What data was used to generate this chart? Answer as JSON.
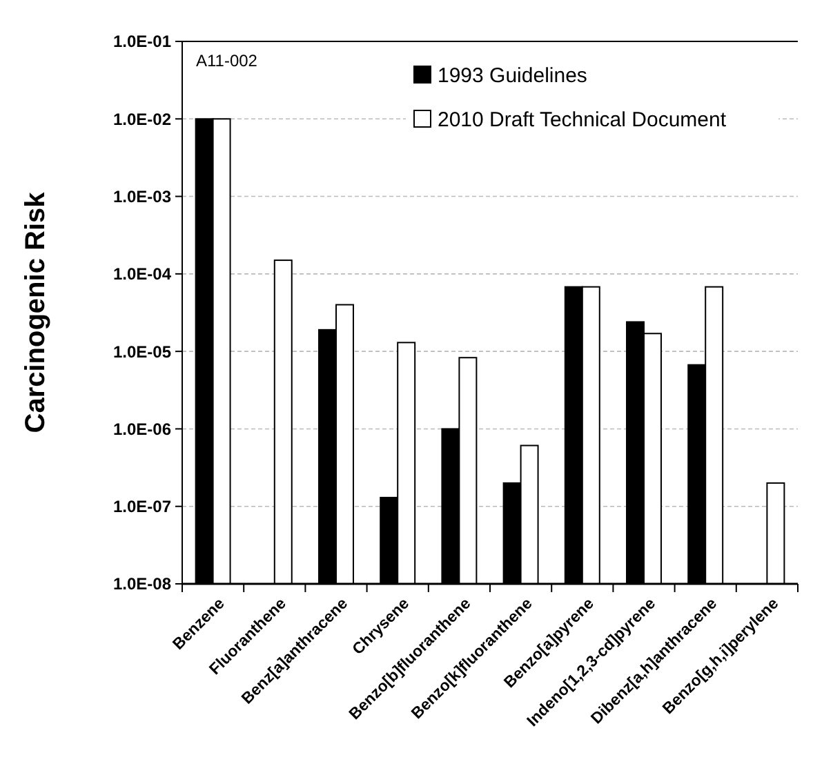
{
  "chart_data": {
    "type": "bar",
    "ylabel": "Carcinogenic Risk",
    "annotations": [
      "A11-002"
    ],
    "categories": [
      "Benzene",
      "Fluoranthene",
      "Benz[a]anthracene",
      "Chrysene",
      "Benzo[b]fluoranthene",
      "Benzo[k]fluoranthene",
      "Benzo[a]pyrene",
      "Indeno[1,2,3-cd]pyrene",
      "Dibenz[a,h]anthracene",
      "Benzo[g,h,i]perylene"
    ],
    "series": [
      {
        "name": "1993 Guidelines",
        "color": "#000000",
        "values": [
          0.01,
          null,
          1.9e-05,
          1.3e-07,
          1e-06,
          2e-07,
          6.8e-05,
          2.4e-05,
          6.7e-06,
          null
        ]
      },
      {
        "name": "2010 Draft Technical Document",
        "color": "#ffffff",
        "values": [
          0.01,
          0.00015,
          4e-05,
          1.3e-05,
          8.3e-06,
          6.1e-07,
          6.8e-05,
          1.7e-05,
          6.8e-05,
          2e-07
        ]
      }
    ],
    "log": true,
    "ylim": [
      1e-08,
      0.1
    ],
    "yticks": [
      {
        "value": 1e-08,
        "label": "1.0E-08"
      },
      {
        "value": 1e-07,
        "label": "1.0E-07"
      },
      {
        "value": 1e-06,
        "label": "1.0E-06"
      },
      {
        "value": 1e-05,
        "label": "1.0E-05"
      },
      {
        "value": 0.0001,
        "label": "1.0E-04"
      },
      {
        "value": 0.001,
        "label": "1.0E-03"
      },
      {
        "value": 0.01,
        "label": "1.0E-02"
      },
      {
        "value": 0.1,
        "label": "1.0E-01"
      }
    ],
    "grid": "y",
    "legend": "top right"
  }
}
